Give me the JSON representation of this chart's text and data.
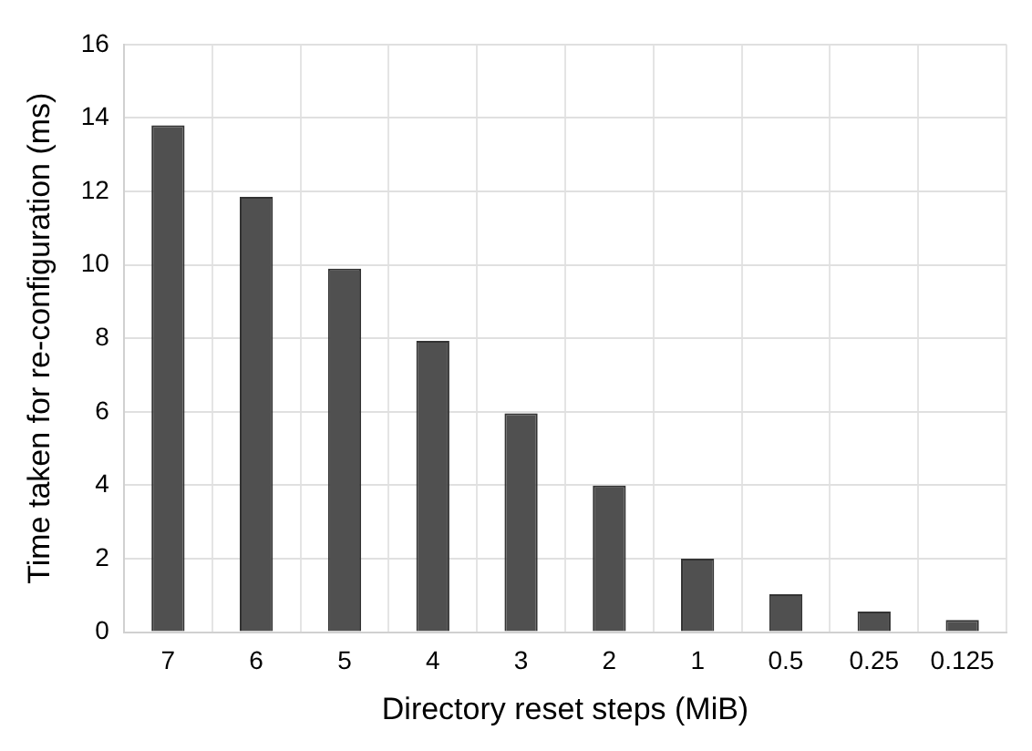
{
  "chart_data": {
    "type": "bar",
    "xlabel": "Directory reset steps (MiB)",
    "ylabel": "Time taken for re-configuration (ms)",
    "categories": [
      "7",
      "6",
      "5",
      "4",
      "3",
      "2",
      "1",
      "0.5",
      "0.25",
      "0.125"
    ],
    "values": [
      13.8,
      11.85,
      9.9,
      7.93,
      5.96,
      3.99,
      2.0,
      1.03,
      0.56,
      0.33
    ],
    "color": "#505050",
    "ylim": [
      0,
      16
    ],
    "yticks": [
      0,
      2,
      4,
      6,
      8,
      10,
      12,
      14,
      16
    ],
    "grid": true
  }
}
